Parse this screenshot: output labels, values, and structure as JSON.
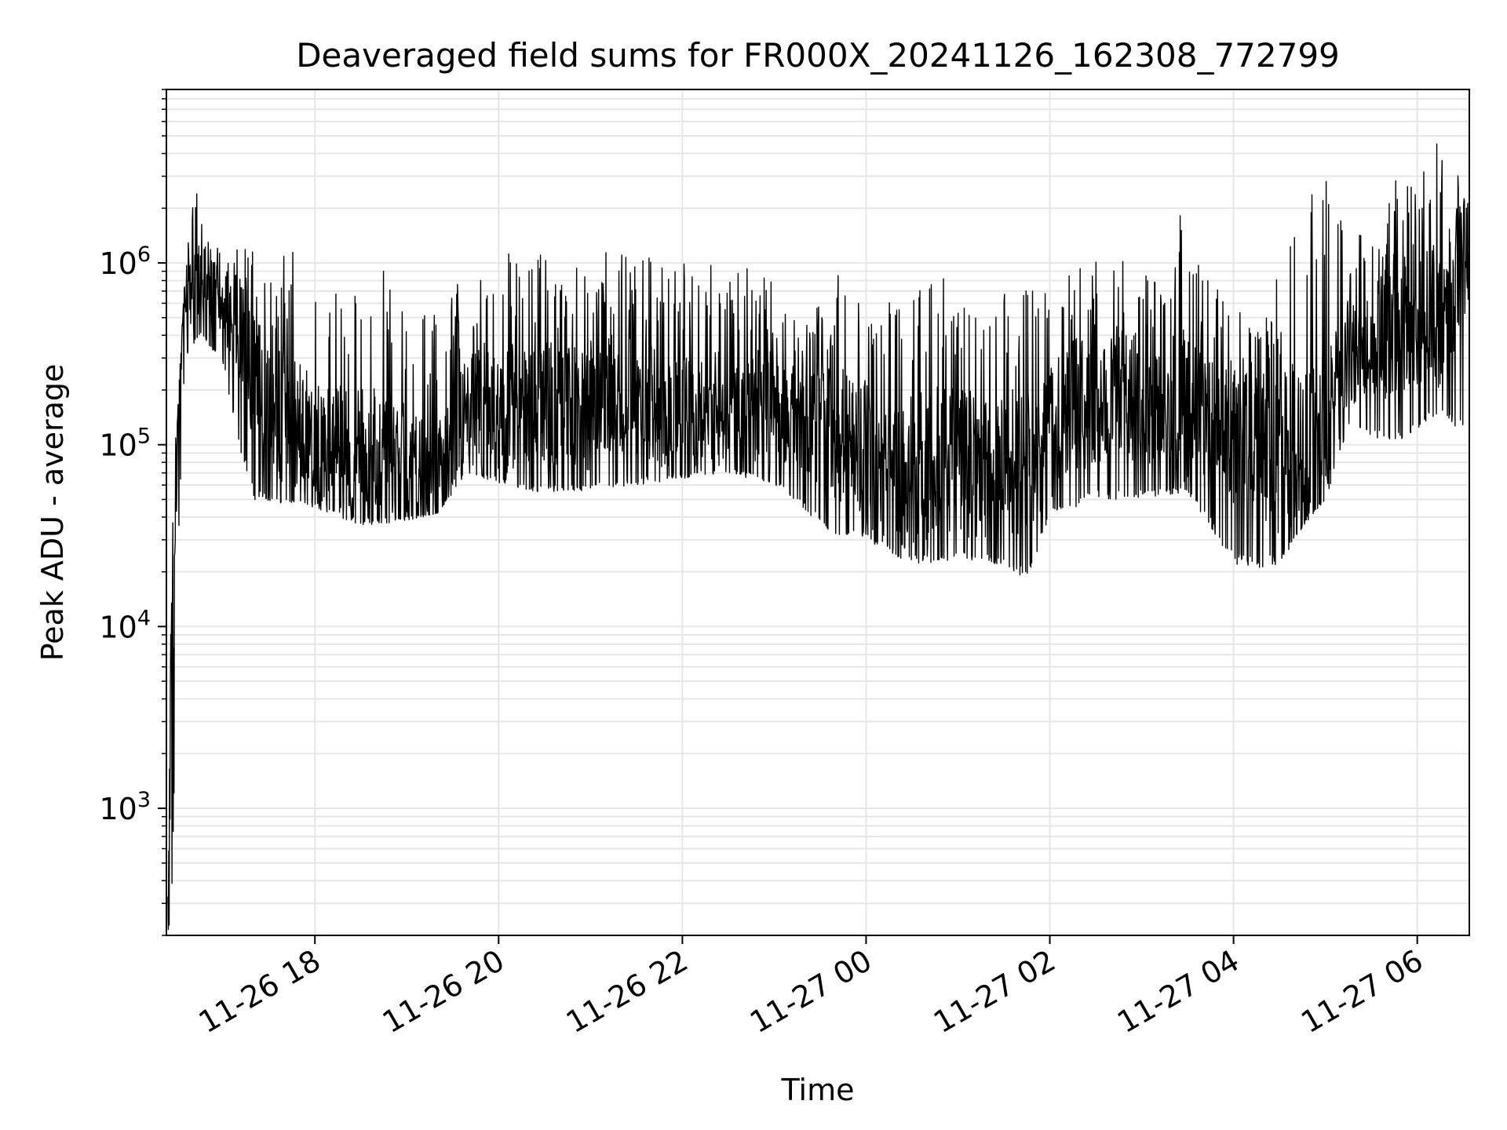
{
  "chart_data": {
    "type": "line",
    "title": "Deaveraged field sums for FR000X_20241126_162308_772799",
    "xlabel": "Time",
    "ylabel": "Peak ADU - average",
    "y_scale": "log",
    "ylim": [
      200,
      9000000
    ],
    "xlim": [
      "2024-11-26 16:23",
      "2024-11-27 06:34"
    ],
    "grid": true,
    "grid_minor": true,
    "line_color": "#000000",
    "grid_color": "#e6e6e6",
    "x_ticks": [
      {
        "value": "2024-11-26 18:00",
        "label": "11-26 18"
      },
      {
        "value": "2024-11-26 20:00",
        "label": "11-26 20"
      },
      {
        "value": "2024-11-26 22:00",
        "label": "11-26 22"
      },
      {
        "value": "2024-11-27 00:00",
        "label": "11-27 00"
      },
      {
        "value": "2024-11-27 02:00",
        "label": "11-27 02"
      },
      {
        "value": "2024-11-27 04:00",
        "label": "11-27 04"
      },
      {
        "value": "2024-11-27 06:00",
        "label": "11-27 06"
      }
    ],
    "y_ticks": [
      {
        "value": 1000,
        "base": "10",
        "exp": "3"
      },
      {
        "value": 10000,
        "base": "10",
        "exp": "4"
      },
      {
        "value": 100000,
        "base": "10",
        "exp": "5"
      },
      {
        "value": 1000000,
        "base": "10",
        "exp": "6"
      }
    ],
    "series": [
      {
        "upper_envelope": [
          [
            "2024-11-26 16:24",
            500
          ],
          [
            "2024-11-26 16:27",
            75000
          ],
          [
            "2024-11-26 16:30",
            130000
          ],
          [
            "2024-11-26 16:35",
            900000
          ],
          [
            "2024-11-26 16:40",
            2200000
          ],
          [
            "2024-11-26 16:45",
            2700000
          ],
          [
            "2024-11-26 16:50",
            1300000
          ],
          [
            "2024-11-26 17:00",
            1300000
          ],
          [
            "2024-11-26 17:15",
            1300000
          ],
          [
            "2024-11-26 17:30",
            1000000
          ],
          [
            "2024-11-26 17:45",
            1200000
          ],
          [
            "2024-11-26 18:00",
            700000
          ],
          [
            "2024-11-26 18:30",
            800000
          ],
          [
            "2024-11-26 18:45",
            1300000
          ],
          [
            "2024-11-26 19:00",
            700000
          ],
          [
            "2024-11-26 19:15",
            500000
          ],
          [
            "2024-11-26 19:30",
            700000
          ],
          [
            "2024-11-26 19:50",
            1200000
          ],
          [
            "2024-11-26 20:15",
            1300000
          ],
          [
            "2024-11-26 20:45",
            900000
          ],
          [
            "2024-11-26 21:00",
            1200000
          ],
          [
            "2024-11-26 21:30",
            1100000
          ],
          [
            "2024-11-26 22:00",
            1000000
          ],
          [
            "2024-11-26 22:40",
            1000000
          ],
          [
            "2024-11-26 23:00",
            800000
          ],
          [
            "2024-11-26 23:20",
            500000
          ],
          [
            "2024-11-26 23:45",
            1000000
          ],
          [
            "2024-11-27 00:15",
            700000
          ],
          [
            "2024-11-27 00:45",
            900000
          ],
          [
            "2024-11-27 01:15",
            700000
          ],
          [
            "2024-11-27 01:45",
            800000
          ],
          [
            "2024-11-27 02:15",
            1000000
          ],
          [
            "2024-11-27 02:45",
            1100000
          ],
          [
            "2024-11-27 03:15",
            800000
          ],
          [
            "2024-11-27 03:25",
            2600000
          ],
          [
            "2024-11-27 03:40",
            1000000
          ],
          [
            "2024-11-27 04:00",
            500000
          ],
          [
            "2024-11-27 04:30",
            900000
          ],
          [
            "2024-11-27 04:40",
            2000000
          ],
          [
            "2024-11-27 05:00",
            3800000
          ],
          [
            "2024-11-27 05:15",
            1400000
          ],
          [
            "2024-11-27 05:35",
            1500000
          ],
          [
            "2024-11-27 05:45",
            3500000
          ],
          [
            "2024-11-27 06:00",
            2500000
          ],
          [
            "2024-11-27 06:15",
            6000000
          ],
          [
            "2024-11-27 06:34",
            2000000
          ]
        ],
        "typical": [
          [
            "2024-11-26 16:24",
            300
          ],
          [
            "2024-11-26 16:27",
            10000
          ],
          [
            "2024-11-26 16:30",
            100000
          ],
          [
            "2024-11-26 16:35",
            600000
          ],
          [
            "2024-11-26 16:45",
            800000
          ],
          [
            "2024-11-26 17:00",
            600000
          ],
          [
            "2024-11-26 17:15",
            300000
          ],
          [
            "2024-11-26 17:30",
            150000
          ],
          [
            "2024-11-26 18:00",
            100000
          ],
          [
            "2024-11-26 18:30",
            80000
          ],
          [
            "2024-11-26 19:00",
            70000
          ],
          [
            "2024-11-26 19:20",
            60000
          ],
          [
            "2024-11-26 19:40",
            150000
          ],
          [
            "2024-11-26 20:15",
            150000
          ],
          [
            "2024-11-26 21:00",
            150000
          ],
          [
            "2024-11-26 21:30",
            180000
          ],
          [
            "2024-11-26 22:00",
            130000
          ],
          [
            "2024-11-26 22:30",
            150000
          ],
          [
            "2024-11-26 23:00",
            150000
          ],
          [
            "2024-11-26 23:30",
            120000
          ],
          [
            "2024-11-26 23:50",
            100000
          ],
          [
            "2024-11-27 00:15",
            60000
          ],
          [
            "2024-11-27 00:45",
            70000
          ],
          [
            "2024-11-27 01:15",
            70000
          ],
          [
            "2024-11-27 01:45",
            70000
          ],
          [
            "2024-11-27 02:15",
            150000
          ],
          [
            "2024-11-27 02:45",
            180000
          ],
          [
            "2024-11-27 03:15",
            150000
          ],
          [
            "2024-11-27 03:45",
            130000
          ],
          [
            "2024-11-27 04:00",
            100000
          ],
          [
            "2024-11-27 04:30",
            80000
          ],
          [
            "2024-11-27 05:00",
            100000
          ],
          [
            "2024-11-27 05:15",
            300000
          ],
          [
            "2024-11-27 05:45",
            400000
          ],
          [
            "2024-11-27 06:15",
            500000
          ],
          [
            "2024-11-27 06:34",
            1000000
          ]
        ],
        "lower_envelope": [
          [
            "2024-11-26 16:24",
            200
          ],
          [
            "2024-11-26 16:27",
            300
          ],
          [
            "2024-11-26 16:30",
            17000
          ],
          [
            "2024-11-26 16:35",
            300000
          ],
          [
            "2024-11-26 16:45",
            400000
          ],
          [
            "2024-11-26 17:00",
            280000
          ],
          [
            "2024-11-26 17:10",
            100000
          ],
          [
            "2024-11-26 17:20",
            50000
          ],
          [
            "2024-11-26 18:00",
            45000
          ],
          [
            "2024-11-26 18:30",
            36000
          ],
          [
            "2024-11-26 19:00",
            38000
          ],
          [
            "2024-11-26 19:20",
            42000
          ],
          [
            "2024-11-26 19:40",
            70000
          ],
          [
            "2024-11-26 20:15",
            55000
          ],
          [
            "2024-11-26 21:00",
            55000
          ],
          [
            "2024-11-26 21:30",
            60000
          ],
          [
            "2024-11-26 22:00",
            65000
          ],
          [
            "2024-11-26 22:30",
            70000
          ],
          [
            "2024-11-26 23:00",
            60000
          ],
          [
            "2024-11-26 23:25",
            40000
          ],
          [
            "2024-11-26 23:35",
            32000
          ],
          [
            "2024-11-27 00:00",
            30000
          ],
          [
            "2024-11-27 00:30",
            22000
          ],
          [
            "2024-11-27 01:00",
            23000
          ],
          [
            "2024-11-27 01:30",
            22000
          ],
          [
            "2024-11-27 01:45",
            18000
          ],
          [
            "2024-11-27 02:00",
            40000
          ],
          [
            "2024-11-27 02:30",
            50000
          ],
          [
            "2024-11-27 03:00",
            50000
          ],
          [
            "2024-11-27 03:30",
            55000
          ],
          [
            "2024-11-27 03:50",
            30000
          ],
          [
            "2024-11-27 04:00",
            22000
          ],
          [
            "2024-11-27 04:15",
            21000
          ],
          [
            "2024-11-27 04:30",
            22000
          ],
          [
            "2024-11-27 04:50",
            40000
          ],
          [
            "2024-11-27 05:00",
            50000
          ],
          [
            "2024-11-27 05:15",
            120000
          ],
          [
            "2024-11-27 05:45",
            100000
          ],
          [
            "2024-11-27 06:15",
            150000
          ],
          [
            "2024-11-27 06:34",
            100000
          ]
        ]
      }
    ]
  }
}
